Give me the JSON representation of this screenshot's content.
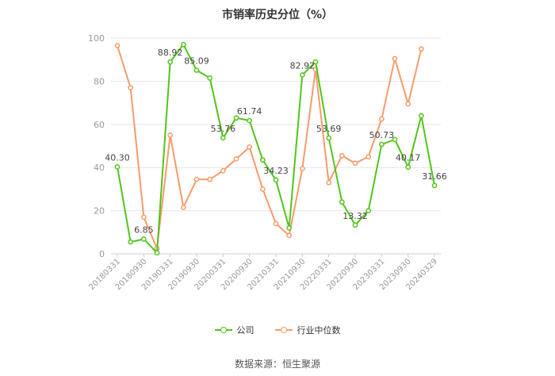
{
  "chart_data": {
    "type": "line",
    "title": "市销率历史分位（%）",
    "source": "数据来源：恒生聚源",
    "ylim": [
      0,
      100
    ],
    "yticks": [
      0,
      20,
      40,
      60,
      80,
      100
    ],
    "grid": true,
    "legend_position": "bottom",
    "x": [
      "20180331",
      "20180630",
      "20180930",
      "20181231",
      "20190331",
      "20190630",
      "20190930",
      "20191231",
      "20200331",
      "20200630",
      "20200930",
      "20201231",
      "20210331",
      "20210630",
      "20210930",
      "20211231",
      "20220331",
      "20220630",
      "20220930",
      "20221231",
      "20230331",
      "20230630",
      "20230930",
      "20231231",
      "20240329"
    ],
    "xtick_labels": [
      "20180331",
      "20180930",
      "20190331",
      "20190930",
      "20200331",
      "20200930",
      "20210331",
      "20210930",
      "20220331",
      "20220930",
      "20230331",
      "20230930",
      "20240329"
    ],
    "series": [
      {
        "name": "公司",
        "color": "#52c41a",
        "values": [
          40.3,
          5.5,
          6.85,
          0.5,
          88.92,
          97.0,
          85.09,
          81.5,
          53.76,
          63.0,
          61.74,
          43.5,
          34.23,
          12.0,
          82.92,
          89.0,
          53.69,
          24.0,
          13.32,
          20.0,
          50.73,
          53.0,
          40.17,
          64.0,
          31.66
        ],
        "labels": {
          "0": "40.30",
          "2": "6.85",
          "4": "88.92",
          "6": "85.09",
          "8": "53.76",
          "10": "61.74",
          "12": "34.23",
          "14": "82.92",
          "16": "53.69",
          "18": "13.32",
          "20": "50.73",
          "22": "40.17",
          "24": "31.66"
        }
      },
      {
        "name": "行业中位数",
        "color": "#f79b6b",
        "values": [
          96.5,
          77.0,
          17.0,
          2.5,
          55.0,
          21.5,
          34.5,
          34.5,
          38.5,
          44.0,
          49.5,
          30.0,
          14.0,
          8.5,
          39.5,
          85.5,
          33.0,
          45.5,
          42.0,
          45.0,
          62.5,
          90.5,
          69.5,
          95.0,
          null
        ]
      }
    ]
  }
}
